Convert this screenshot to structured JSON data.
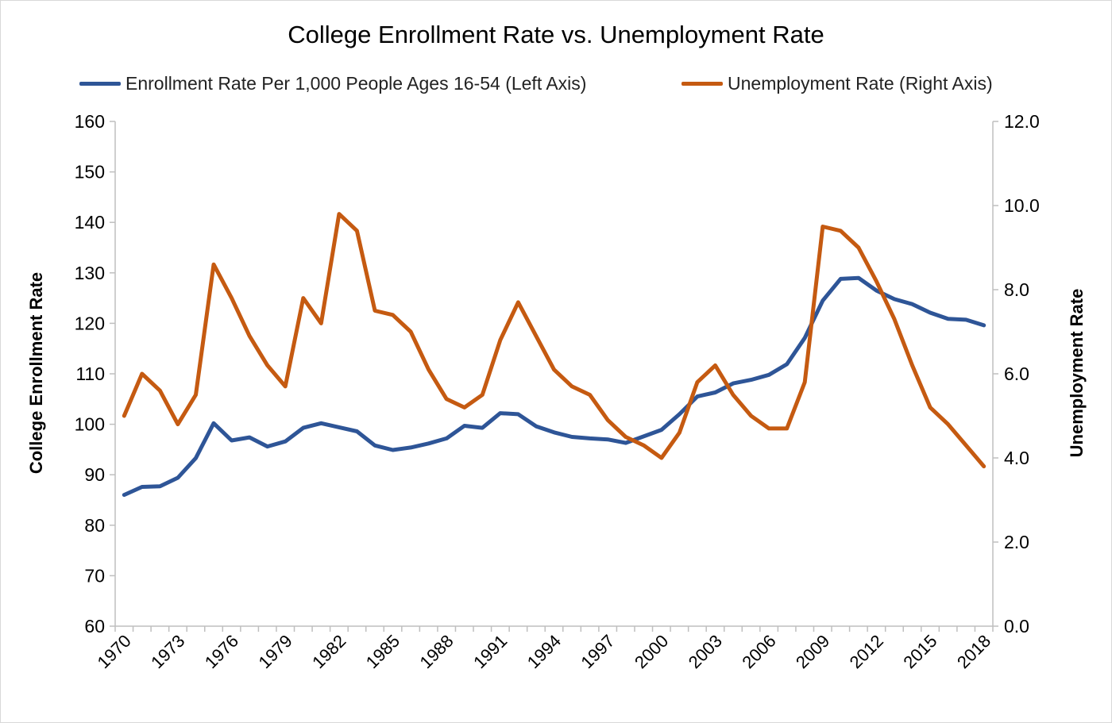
{
  "chart_data": {
    "type": "line",
    "title": "College Enrollment Rate vs. Unemployment Rate",
    "x": [
      1970,
      1971,
      1972,
      1973,
      1974,
      1975,
      1976,
      1977,
      1978,
      1979,
      1980,
      1981,
      1982,
      1983,
      1984,
      1985,
      1986,
      1987,
      1988,
      1989,
      1990,
      1991,
      1992,
      1993,
      1994,
      1995,
      1996,
      1997,
      1998,
      1999,
      2000,
      2001,
      2002,
      2003,
      2004,
      2005,
      2006,
      2007,
      2008,
      2009,
      2010,
      2011,
      2012,
      2013,
      2014,
      2015,
      2016,
      2017,
      2018
    ],
    "x_tick_labels": [
      "1970",
      "1973",
      "1976",
      "1979",
      "1982",
      "1985",
      "1988",
      "1991",
      "1994",
      "1997",
      "2000",
      "2003",
      "2006",
      "2009",
      "2012",
      "2015",
      "2018"
    ],
    "series": [
      {
        "name": "Enrollment Rate Per 1,000 People Ages 16-54 (Left Axis)",
        "axis": "left",
        "color": "#2e5597",
        "values": [
          86.0,
          87.6,
          87.7,
          89.4,
          93.3,
          100.2,
          96.8,
          97.4,
          95.6,
          96.6,
          99.3,
          100.2,
          99.4,
          98.6,
          95.8,
          94.9,
          95.4,
          96.2,
          97.2,
          99.7,
          99.3,
          102.2,
          102.0,
          99.6,
          98.4,
          97.5,
          97.2,
          97.0,
          96.3,
          97.6,
          98.9,
          102.0,
          105.5,
          106.3,
          108.1,
          108.8,
          109.8,
          111.9,
          117.1,
          124.5,
          128.8,
          129.0,
          126.5,
          124.8,
          123.8,
          122.1,
          120.9,
          120.7,
          119.6
        ]
      },
      {
        "name": "Unemployment Rate (Right Axis)",
        "axis": "right",
        "color": "#c55a11",
        "values": [
          5.0,
          6.0,
          5.6,
          4.8,
          5.5,
          8.6,
          7.8,
          6.9,
          6.2,
          5.7,
          7.8,
          7.2,
          9.8,
          9.4,
          7.5,
          7.4,
          7.0,
          6.1,
          5.4,
          5.2,
          5.5,
          6.8,
          7.7,
          6.9,
          6.1,
          5.7,
          5.5,
          4.9,
          4.5,
          4.3,
          4.0,
          4.6,
          5.8,
          6.2,
          5.5,
          5.0,
          4.7,
          4.7,
          5.8,
          9.5,
          9.4,
          9.0,
          8.2,
          7.3,
          6.2,
          5.2,
          4.8,
          4.3,
          3.8
        ]
      }
    ],
    "left_axis": {
      "label": "College Enrollment Rate",
      "ylim": [
        60,
        160
      ],
      "tick_labels": [
        "160",
        "150",
        "140",
        "130",
        "120",
        "110",
        "100",
        "90",
        "80",
        "70",
        "60"
      ]
    },
    "right_axis": {
      "label": "Unemployment Rate",
      "ylim": [
        0,
        12
      ],
      "tick_labels": [
        "12.0",
        "10.0",
        "8.0",
        "6.0",
        "4.0",
        "2.0",
        "0.0"
      ]
    },
    "legend_position": "top",
    "grid": false
  }
}
